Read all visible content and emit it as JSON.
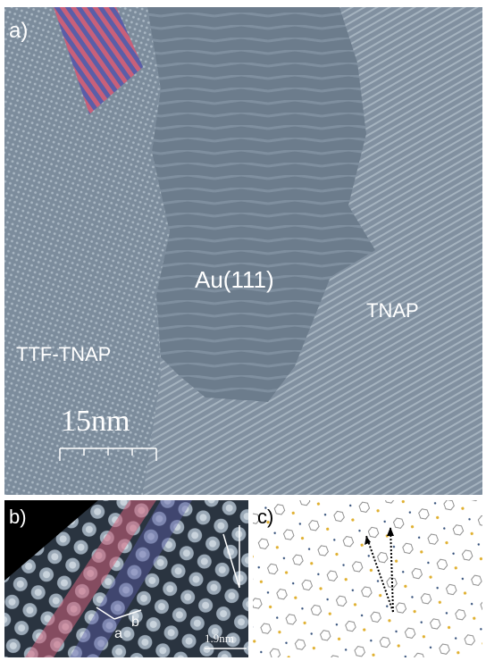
{
  "panels": [
    {
      "label": "a)",
      "regions": {
        "center": "Au(111)",
        "right": "TNAP",
        "left": "TTF-TNAP"
      },
      "scale_bar": "15nm"
    },
    {
      "label": "b)",
      "vectors": [
        "a",
        "b"
      ],
      "scale_bar": "1.9nm"
    },
    {
      "label": "c)"
    }
  ]
}
